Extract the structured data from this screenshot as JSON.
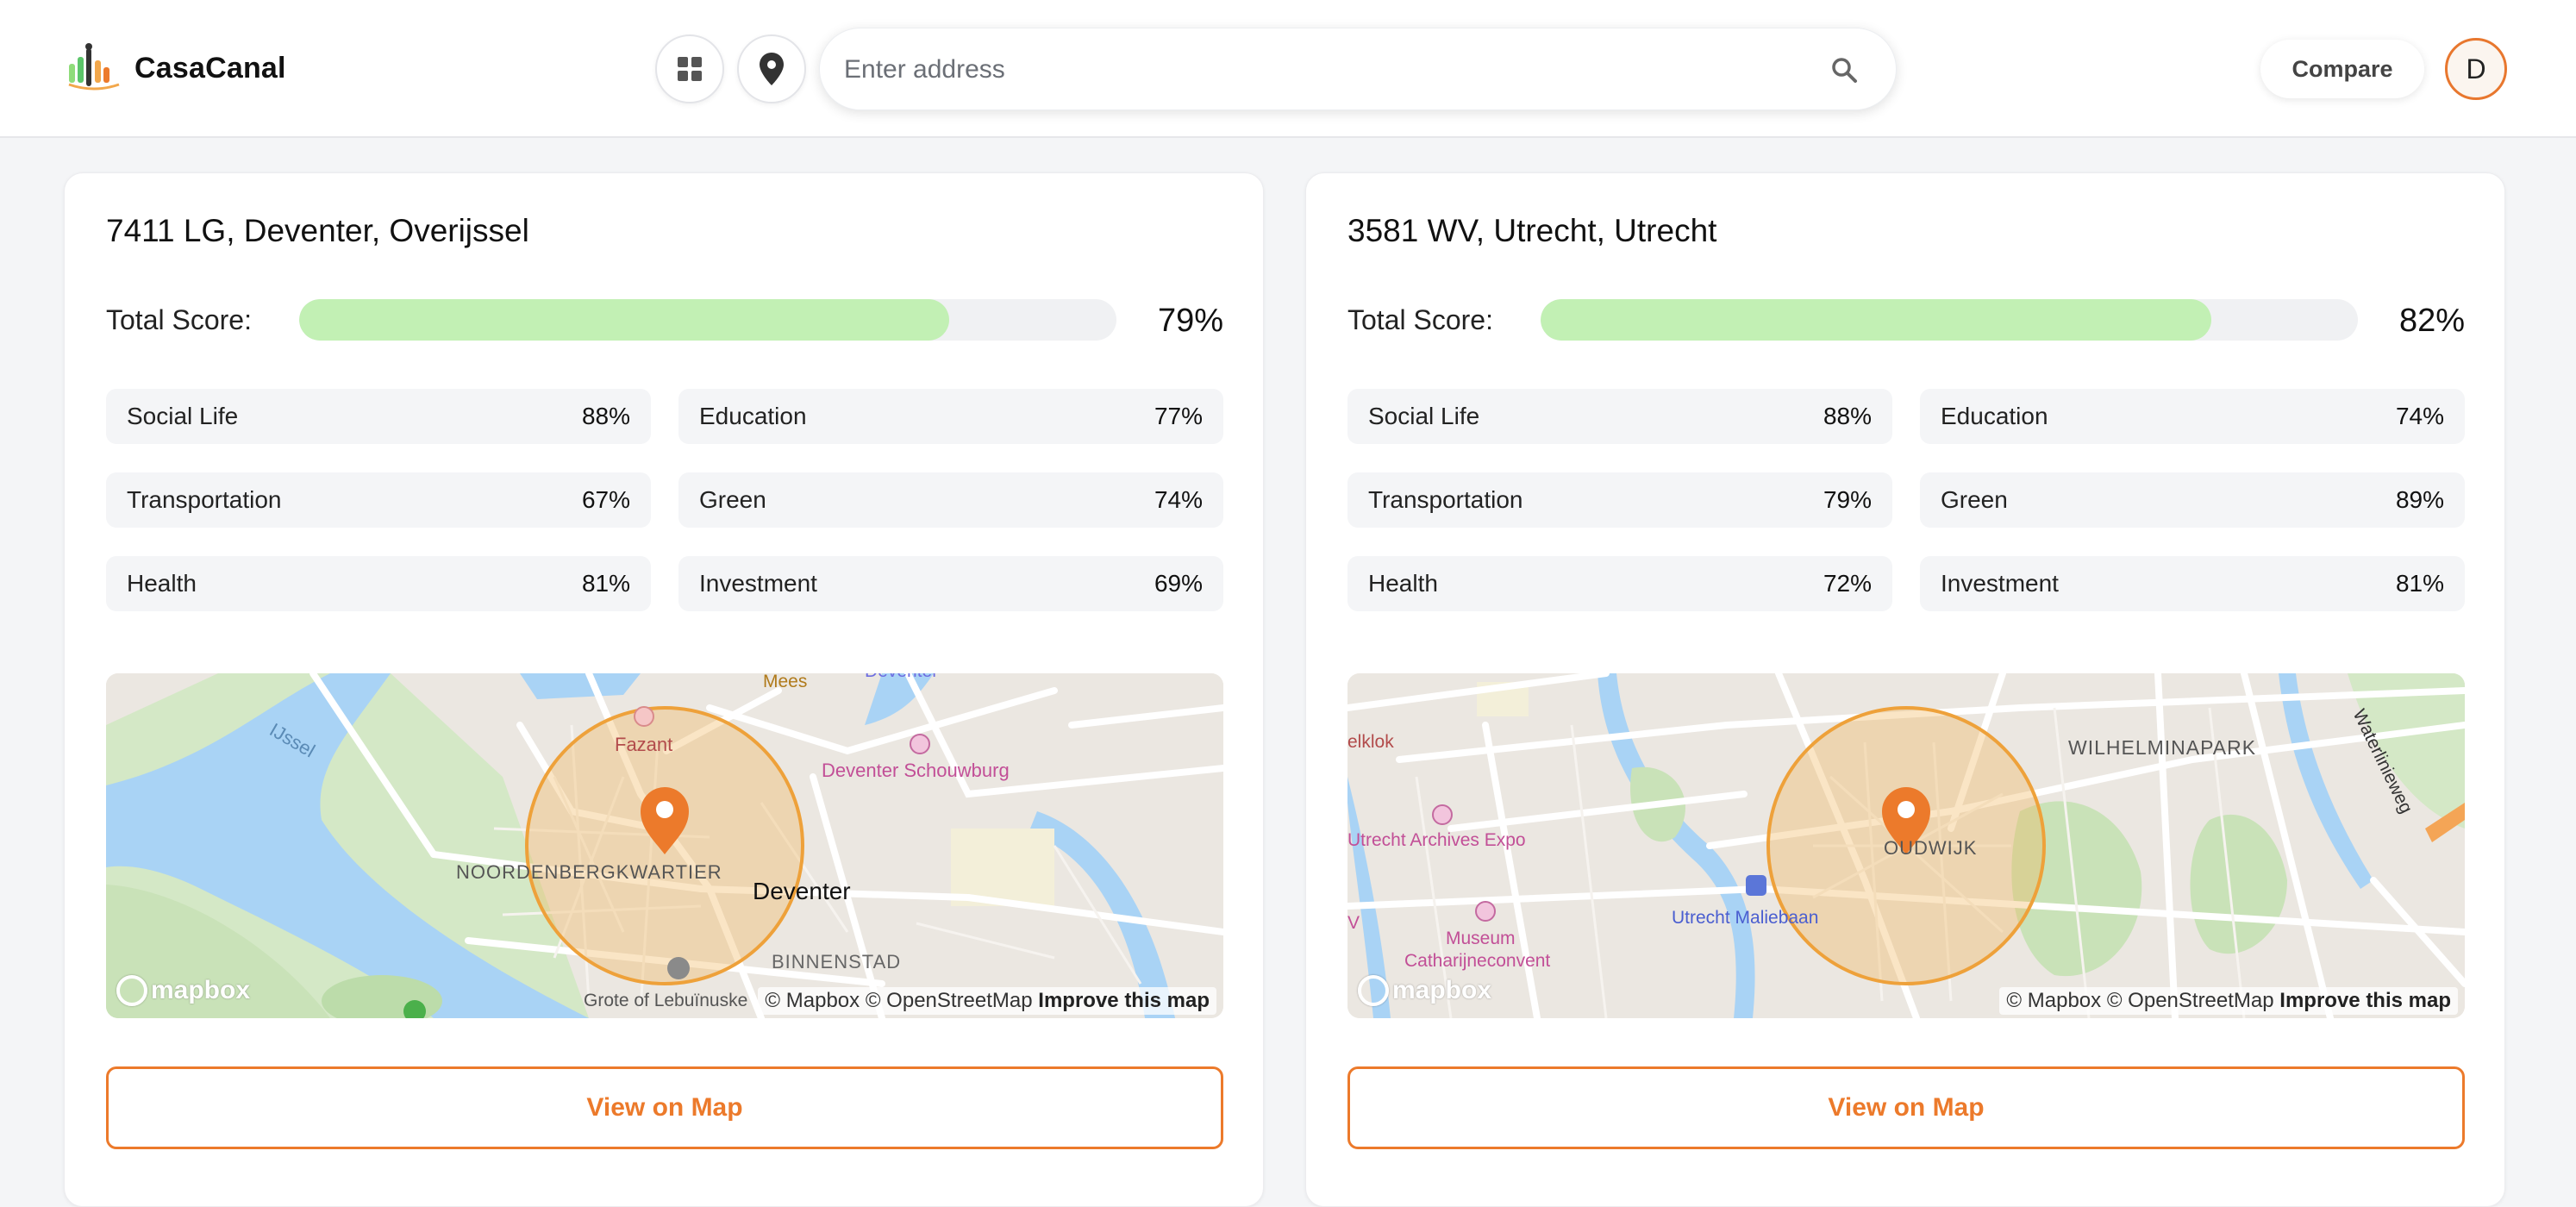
{
  "app": {
    "name": "CasaCanal",
    "accent_color": "#ec7a2b",
    "score_bar_color": "#c2f0b4"
  },
  "header": {
    "grid_button_icon": "grid-icon",
    "location_button_icon": "map-pin-icon",
    "search": {
      "placeholder": "Enter address",
      "value": "",
      "icon": "search-icon"
    },
    "compare_label": "Compare",
    "avatar_initial": "D"
  },
  "cards": [
    {
      "title": "7411 LG, Deventer, Overijssel",
      "total_label": "Total Score:",
      "total_value": "79%",
      "total_fraction": 0.79,
      "metrics": [
        {
          "label": "Social Life",
          "value": "88%"
        },
        {
          "label": "Education",
          "value": "77%"
        },
        {
          "label": "Transportation",
          "value": "67%"
        },
        {
          "label": "Green",
          "value": "74%"
        },
        {
          "label": "Health",
          "value": "81%"
        },
        {
          "label": "Investment",
          "value": "69%"
        }
      ],
      "map": {
        "labels": {
          "ijssel": "IJssel",
          "fazant": "Fazant",
          "mees": "Mees",
          "deventer_top": "Deventer",
          "schouwburg": "Deventer Schouwburg",
          "noordenberg": "NOORDENBERGKWARTIER",
          "city": "Deventer",
          "binnenstad": "BINNENSTAD",
          "grote": "Grote of Lebuïnuske"
        },
        "attribution_text": "© Mapbox © OpenStreetMap",
        "attribution_link": "Improve this map",
        "logo_text": "mapbox"
      },
      "button_label": "View on Map"
    },
    {
      "title": "3581 WV, Utrecht, Utrecht",
      "total_label": "Total Score:",
      "total_value": "82%",
      "total_fraction": 0.82,
      "metrics": [
        {
          "label": "Social Life",
          "value": "88%"
        },
        {
          "label": "Education",
          "value": "74%"
        },
        {
          "label": "Transportation",
          "value": "79%"
        },
        {
          "label": "Green",
          "value": "89%"
        },
        {
          "label": "Health",
          "value": "72%"
        },
        {
          "label": "Investment",
          "value": "81%"
        }
      ],
      "map": {
        "labels": {
          "klok": "elklok",
          "wilhelmina": "WILHELMINAPARK",
          "waterlinie": "Waterlinieweg",
          "archives": "Utrecht Archives Expo",
          "oudwijk": "OUDWIJK",
          "malie": "Utrecht Maliebaan",
          "museum1": "Museum",
          "museum2": "Catharijneconvent",
          "v": "V"
        },
        "attribution_text": "© Mapbox © OpenStreetMap",
        "attribution_link": "Improve this map",
        "logo_text": "mapbox"
      },
      "button_label": "View on Map"
    }
  ]
}
